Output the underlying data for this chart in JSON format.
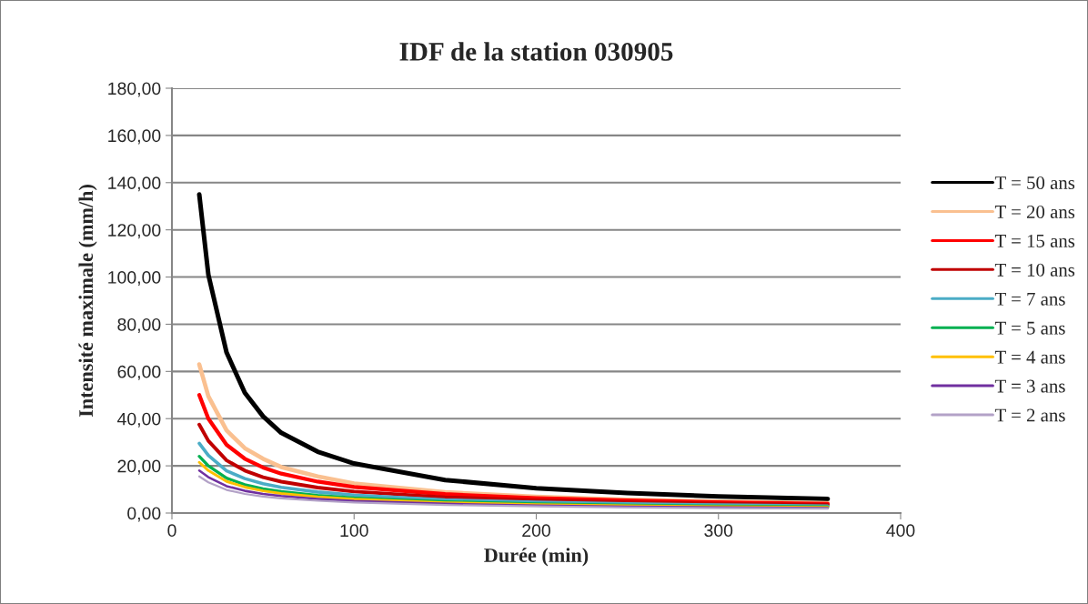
{
  "chart_data": {
    "type": "line",
    "title": "IDF de la station 030905",
    "xlabel": "Durée (min)",
    "ylabel": "Intensité maximale (mm/h)",
    "x": [
      15,
      20,
      30,
      40,
      50,
      60,
      80,
      100,
      150,
      200,
      250,
      300,
      360
    ],
    "series": [
      {
        "name": "T = 50 ans",
        "color": "#000000",
        "values": [
          135,
          101,
          68,
          51,
          41,
          34,
          26,
          21,
          14,
          10.5,
          8.5,
          7,
          6
        ]
      },
      {
        "name": "T = 20 ans",
        "color": "#fac090",
        "values": [
          63,
          49.5,
          35,
          27.5,
          23,
          19.5,
          15.5,
          12.5,
          8.8,
          6.9,
          5.7,
          4.9,
          4.2
        ]
      },
      {
        "name": "T = 15 ans",
        "color": "#ff0000",
        "values": [
          50,
          40,
          28.9,
          23,
          19.3,
          16.7,
          13.3,
          11,
          8,
          6.3,
          5.3,
          4.6,
          3.9
        ]
      },
      {
        "name": "T = 10 ans",
        "color": "#c00000",
        "values": [
          37.5,
          30.6,
          22.3,
          18,
          15.2,
          13.3,
          10.8,
          9.1,
          6.7,
          5.4,
          4.6,
          4,
          3.5
        ]
      },
      {
        "name": "T = 7 ans",
        "color": "#4bacc6",
        "values": [
          29.5,
          24.4,
          17.9,
          14.6,
          12.4,
          10.9,
          8.9,
          7.6,
          5.6,
          4.6,
          3.9,
          3.4,
          3.0
        ]
      },
      {
        "name": "T = 5 ans",
        "color": "#00b050",
        "values": [
          24,
          20,
          14.8,
          12,
          10.3,
          9.1,
          7.5,
          6.4,
          4.8,
          3.9,
          3.3,
          2.9,
          2.6
        ]
      },
      {
        "name": "T = 4 ans",
        "color": "#ffc000",
        "values": [
          21.5,
          18,
          13.4,
          11,
          9.4,
          8.3,
          6.9,
          5.9,
          4.4,
          3.6,
          3.1,
          2.7,
          2.4
        ]
      },
      {
        "name": "T = 3 ans",
        "color": "#7030a0",
        "values": [
          18,
          15.2,
          11.4,
          9.4,
          8.1,
          7.2,
          6,
          5.1,
          3.9,
          3.2,
          2.7,
          2.4,
          2.1
        ]
      },
      {
        "name": "T = 2 ans",
        "color": "#b3a2c7",
        "values": [
          15.5,
          13,
          9.8,
          8.1,
          7,
          6.2,
          5.2,
          4.5,
          3.4,
          2.8,
          2.4,
          2.1,
          1.9
        ]
      }
    ],
    "xlim": [
      0,
      400
    ],
    "xticks": [
      0,
      100,
      200,
      300,
      400
    ],
    "ylim": [
      0,
      180
    ],
    "yticks": [
      {
        "value": 0,
        "label": "0,00"
      },
      {
        "value": 20,
        "label": "20,00"
      },
      {
        "value": 40,
        "label": "40,00"
      },
      {
        "value": 60,
        "label": "60,00"
      },
      {
        "value": 80,
        "label": "80,00"
      },
      {
        "value": 100,
        "label": "100,00"
      },
      {
        "value": 120,
        "label": "120,00"
      },
      {
        "value": 140,
        "label": "140,00"
      },
      {
        "value": 160,
        "label": "160,00"
      },
      {
        "value": 180,
        "label": "180,00"
      }
    ],
    "grid": "y",
    "legend": "right",
    "marker": "none",
    "line_style": "solid"
  }
}
